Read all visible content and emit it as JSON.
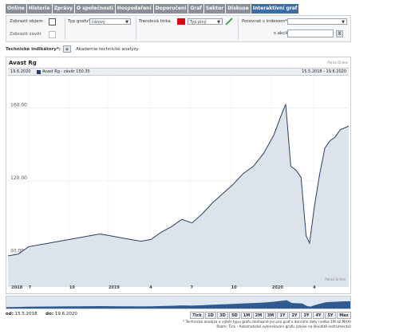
{
  "tabs": [
    "Online",
    "Historie",
    "Zprávy",
    "O společnosti",
    "Hospodaření",
    "Doporučení",
    "Graf",
    "Sektor",
    "Diskuse",
    "Interaktivní graf"
  ],
  "active_tab": "Interaktivní graf",
  "controls": {
    "zobrazit_objem": "Zobrazit objem",
    "zobrazit_zaver": "Zobrazit závěr",
    "typ_grafu_label": "Typ grafu*",
    "typ_grafu_value": "čárový",
    "trendova_linka_label": "Trendová linka",
    "trend_color": "#e00010",
    "trend_type_value": "Typ plný",
    "porovnat_label": "Porovnat s indexem*",
    "s_akcii_label": "s akcií*",
    "clear_label": "X"
  },
  "indicators": {
    "label": "Technické indikátory*:",
    "plus": "+",
    "link": "Akademie technické analýzy"
  },
  "chart": {
    "title": "Avast Rg",
    "source_top": "Patria Online",
    "source_bottom": "Patria Online",
    "info_date": "19.6.2020",
    "info_series": "Avast Rg - závěr 150.35",
    "info_range": "15.5.2018 - 19.6.2020",
    "x_ticks": [
      {
        "label": "2018",
        "x": 0.01
      },
      {
        "label": "7",
        "x": 0.06
      },
      {
        "label": "10",
        "x": 0.18
      },
      {
        "label": "2019",
        "x": 0.295
      },
      {
        "label": "4",
        "x": 0.415
      },
      {
        "label": "7",
        "x": 0.535
      },
      {
        "label": "10",
        "x": 0.655
      },
      {
        "label": "2020",
        "x": 0.775
      },
      {
        "label": "4",
        "x": 0.895
      }
    ]
  },
  "chart_data": {
    "type": "area",
    "title": "Avast Rg",
    "ylim": [
      62,
      178
    ],
    "yticks": [
      80,
      120,
      160
    ],
    "x_range": [
      "15.5.2018",
      "19.6.2020"
    ],
    "series": [
      {
        "name": "Avast Rg",
        "color": "#2a3f63",
        "fill": "#dde3ea",
        "x": [
          0,
          0.03,
          0.06,
          0.09,
          0.12,
          0.15,
          0.18,
          0.21,
          0.24,
          0.27,
          0.3,
          0.33,
          0.36,
          0.39,
          0.42,
          0.45,
          0.48,
          0.51,
          0.54,
          0.57,
          0.6,
          0.63,
          0.66,
          0.69,
          0.72,
          0.75,
          0.78,
          0.8,
          0.815,
          0.83,
          0.845,
          0.86,
          0.875,
          0.885,
          0.9,
          0.915,
          0.93,
          0.945,
          0.96,
          0.975,
          1.0
        ],
        "values": [
          79,
          80,
          84,
          85,
          86,
          87,
          88,
          89,
          90,
          91,
          90,
          89,
          88,
          87,
          88,
          92,
          95,
          99,
          97,
          102,
          108,
          113,
          118,
          124,
          128,
          135,
          145,
          155,
          162,
          128,
          126,
          122,
          90,
          86,
          107,
          124,
          138,
          142,
          144,
          148,
          150
        ]
      }
    ]
  },
  "bottom": {
    "from_label": "od:",
    "from_value": "15.5.2018",
    "to_label": "do:",
    "to_value": "19.6.2020",
    "zoom_buttons": [
      "Tick",
      "1D",
      "3D",
      "5D",
      "1M",
      "2M",
      "3M",
      "1Y",
      "2Y",
      "3Y",
      "4Y",
      "5Y",
      "Max"
    ],
    "note1": "* Technická analýza a výběr typu grafu dostupné jen pro graf s denními daty (volba 1M až MAX)",
    "note2": "Rozm: Tick - Automatické vykreslování grafu (závisí na likviditě instrumentu)"
  }
}
